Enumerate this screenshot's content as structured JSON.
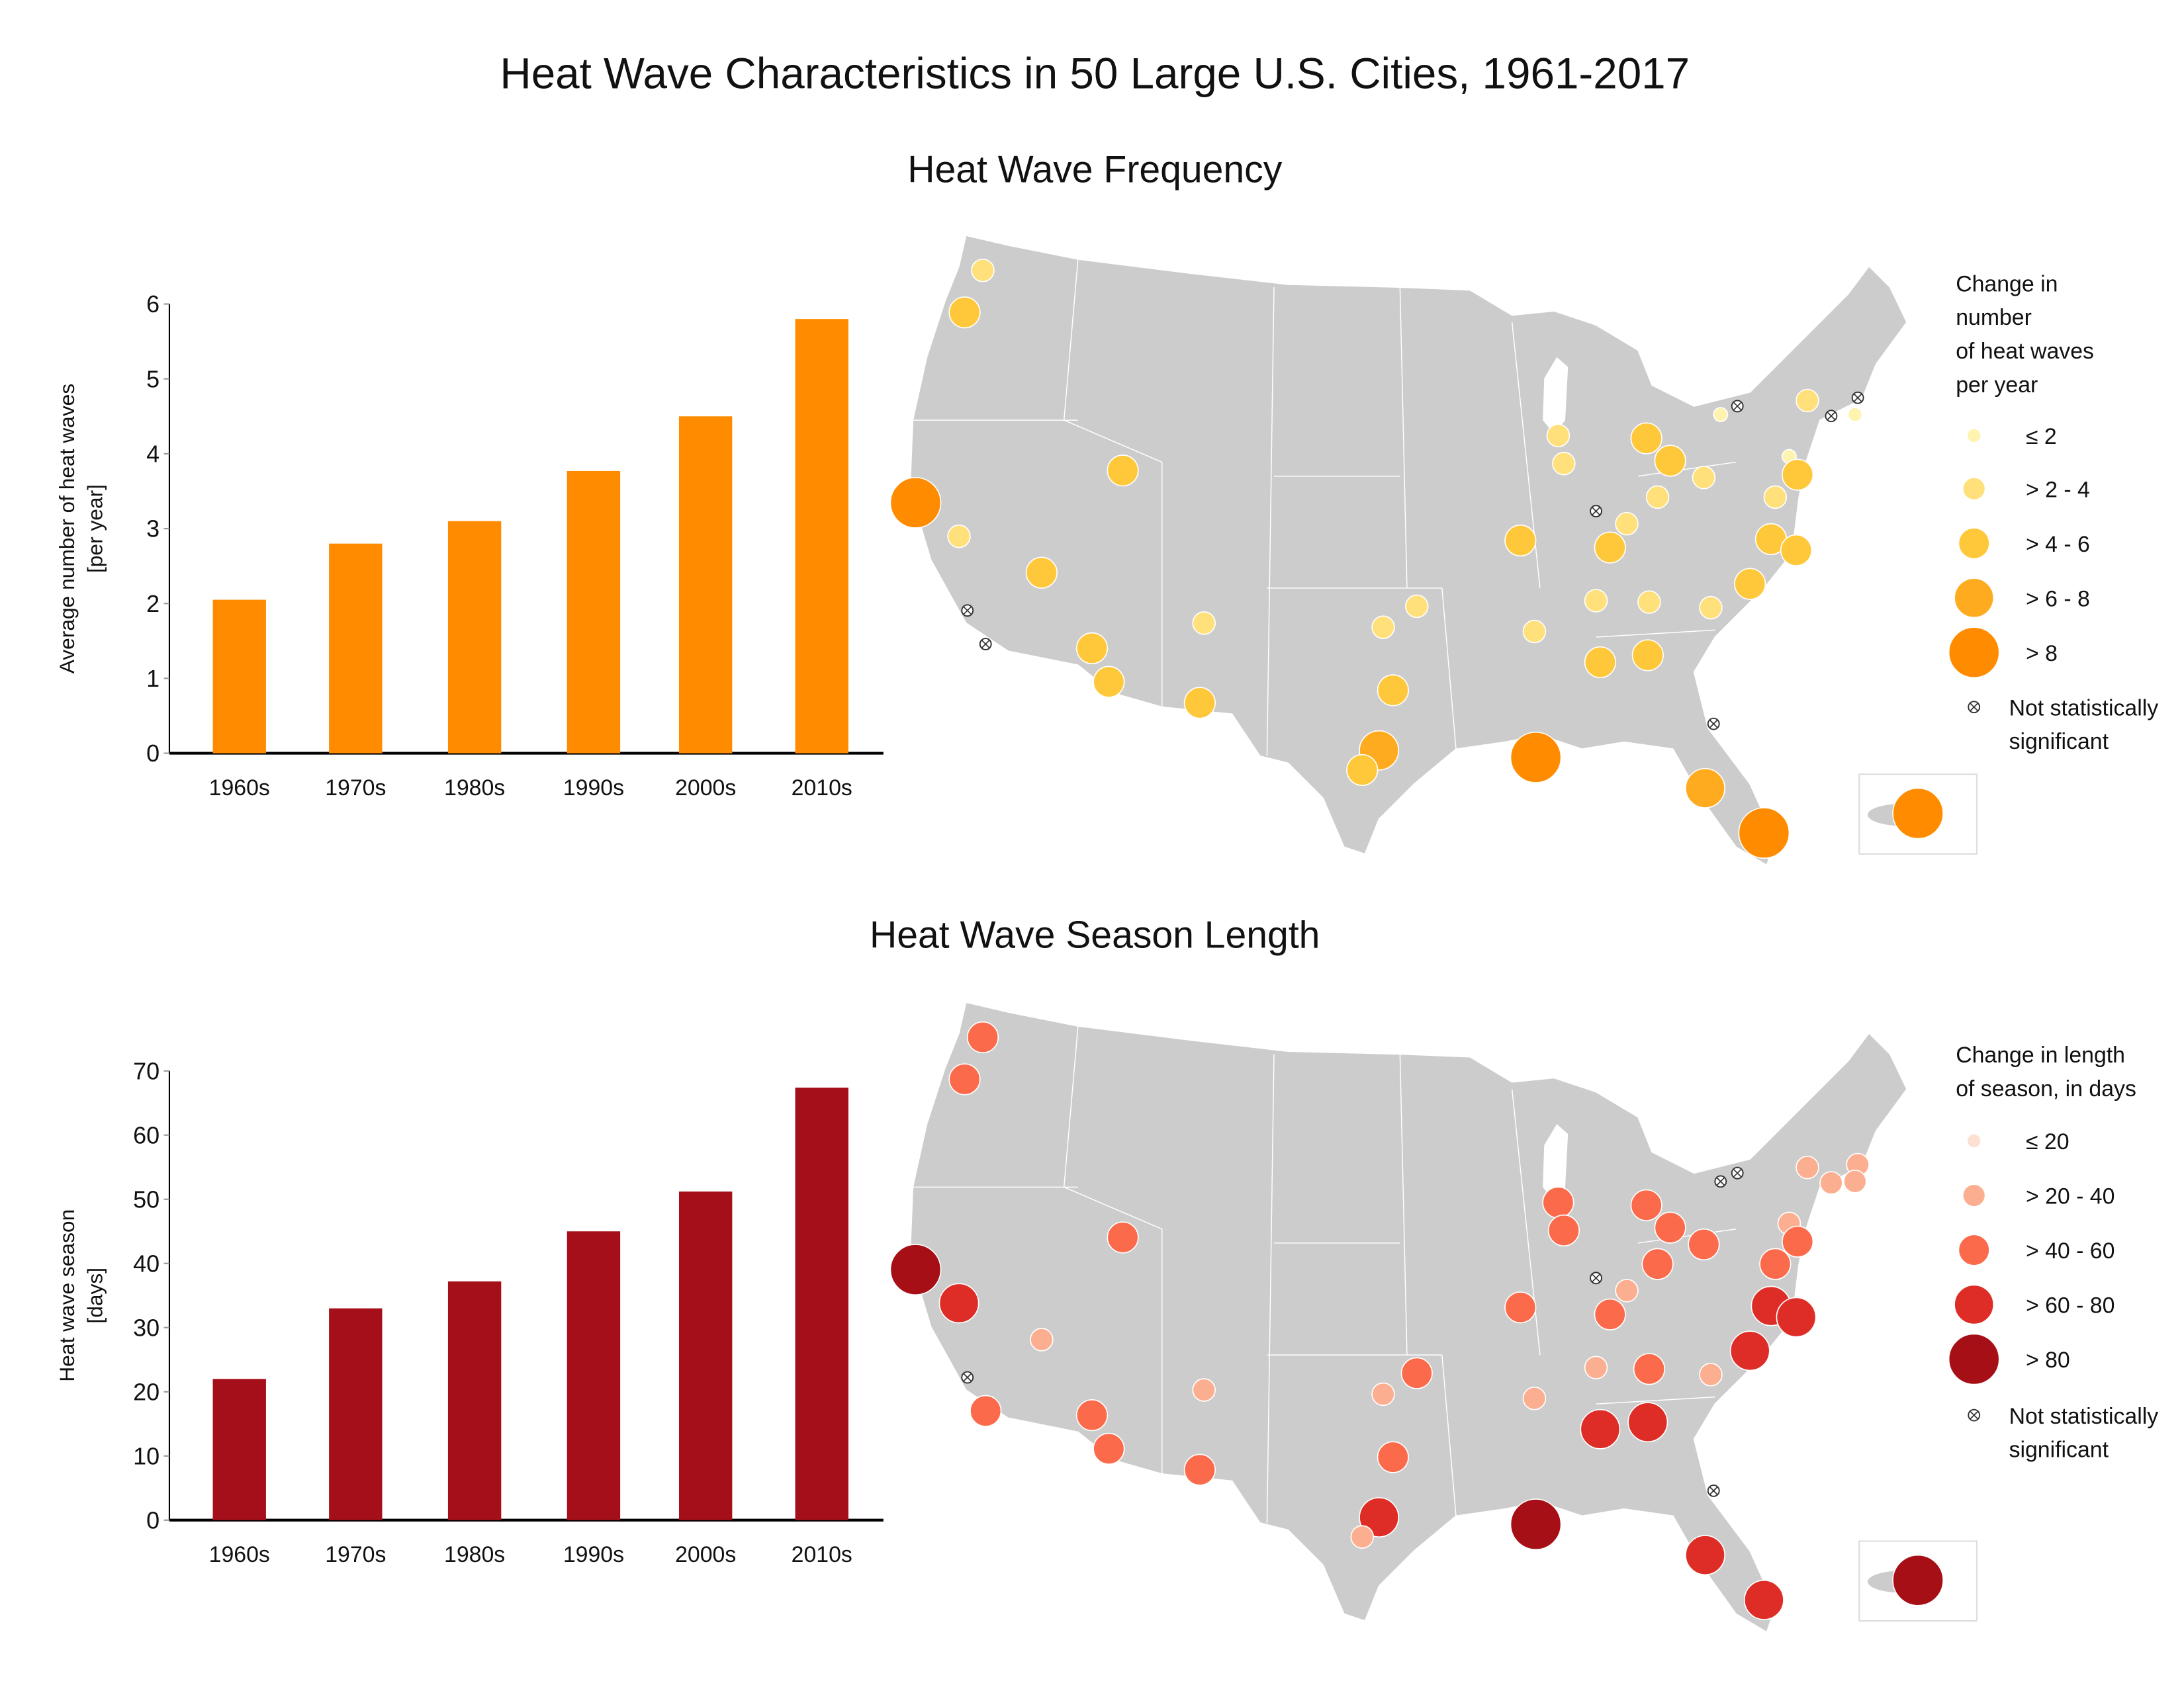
{
  "title": "Heat Wave Characteristics in 50 Large U.S. Cities, 1961-2017",
  "chart_data": [
    {
      "type": "bar",
      "title": "Heat Wave Frequency",
      "ylabel_lines": [
        "Average number of heat waves",
        "[per year]"
      ],
      "categories": [
        "1960s",
        "1970s",
        "1980s",
        "1990s",
        "2000s",
        "2010s"
      ],
      "values": [
        2.05,
        2.8,
        3.1,
        3.77,
        4.5,
        5.8
      ],
      "ylim": [
        0,
        6
      ],
      "yticks": [
        "0",
        "1",
        "2",
        "3",
        "4",
        "5",
        "6"
      ],
      "color": "#ff8c00",
      "grid": false,
      "map": {
        "legend_title_lines": [
          "Change in",
          "number",
          "of heat waves",
          "per year"
        ],
        "legend_items": [
          {
            "label": "≤ 2",
            "color": "#fff3b0"
          },
          {
            "label": "> 2 - 4",
            "color": "#ffe07a"
          },
          {
            "label": "> 4 - 6",
            "color": "#ffc83a"
          },
          {
            "label": "> 6 - 8",
            "color": "#ffab1f"
          },
          {
            "label": "> 8",
            "color": "#ff8c00"
          }
        ],
        "not_significant_lines": [
          "Not statistically",
          "significant"
        ],
        "city_classes": [
          1,
          2,
          2,
          4,
          1,
          2,
          "ns",
          "ns",
          2,
          2,
          1,
          2,
          1,
          1,
          2,
          3,
          2,
          4,
          3,
          4,
          1,
          1,
          "ns",
          2,
          2,
          1,
          2,
          2,
          1,
          1,
          0,
          "ns",
          1,
          "ns",
          "ns",
          0,
          0,
          2,
          1,
          2,
          2,
          2,
          1,
          1,
          1,
          1,
          2,
          2,
          "ns"
        ],
        "inset_class": 4
      }
    },
    {
      "type": "bar",
      "title": "Heat Wave Season Length",
      "ylabel_lines": [
        "Heat wave season",
        "[days]"
      ],
      "categories": [
        "1960s",
        "1970s",
        "1980s",
        "1990s",
        "2000s",
        "2010s"
      ],
      "values": [
        22,
        33,
        37.2,
        45,
        51.2,
        67.4
      ],
      "ylim": [
        0,
        70
      ],
      "yticks": [
        "0",
        "10",
        "20",
        "30",
        "40",
        "50",
        "60",
        "70"
      ],
      "color": "#a50f19",
      "grid": false,
      "map": {
        "legend_title_lines": [
          "Change in length",
          "of season, in days"
        ],
        "legend_items": [
          {
            "label": "≤ 20",
            "color": "#fde0d2"
          },
          {
            "label": "> 20 - 40",
            "color": "#fcae91"
          },
          {
            "label": "> 40 - 60",
            "color": "#fb6a4a"
          },
          {
            "label": "> 60 - 80",
            "color": "#de2d26"
          },
          {
            "label": "> 80",
            "color": "#a50f15"
          }
        ],
        "not_significant_lines": [
          "Not statistically",
          "significant"
        ],
        "city_classes": [
          2,
          2,
          2,
          4,
          3,
          1,
          "ns",
          2,
          2,
          2,
          1,
          2,
          1,
          2,
          2,
          3,
          1,
          4,
          3,
          3,
          2,
          2,
          "ns",
          2,
          2,
          1,
          2,
          2,
          2,
          2,
          "ns",
          "ns",
          1,
          1,
          1,
          1,
          1,
          2,
          2,
          3,
          3,
          3,
          1,
          2,
          1,
          1,
          3,
          3,
          "ns"
        ],
        "inset_class": 4
      }
    }
  ]
}
